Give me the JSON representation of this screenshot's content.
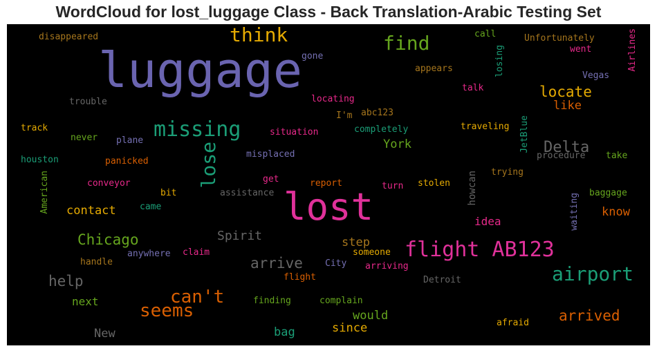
{
  "chart_data": {
    "type": "wordcloud",
    "title": "WordCloud for lost_luggage Class - Back Translation-Arabic Testing Set",
    "background": "#000000",
    "words": [
      {
        "text": "luggage",
        "weight": 1.0,
        "color": "#6a64b0"
      },
      {
        "text": "lost",
        "weight": 0.85,
        "color": "#e0319a"
      },
      {
        "text": "flight AB123",
        "weight": 0.48,
        "color": "#e0319a"
      },
      {
        "text": "missing",
        "weight": 0.48,
        "color": "#1b9e77"
      },
      {
        "text": "think",
        "weight": 0.4,
        "color": "#e6ab02"
      },
      {
        "text": "find",
        "weight": 0.4,
        "color": "#66a61e"
      },
      {
        "text": "lose",
        "weight": 0.4,
        "color": "#1b9e77"
      },
      {
        "text": "airport",
        "weight": 0.4,
        "color": "#1b9e77"
      },
      {
        "text": "seems",
        "weight": 0.37,
        "color": "#d95f02"
      },
      {
        "text": "can't",
        "weight": 0.37,
        "color": "#d95f02"
      },
      {
        "text": "Delta",
        "weight": 0.33,
        "color": "#666666"
      },
      {
        "text": "arrive",
        "weight": 0.33,
        "color": "#666666"
      },
      {
        "text": "Chicago",
        "weight": 0.33,
        "color": "#66a61e"
      },
      {
        "text": "arrived",
        "weight": 0.33,
        "color": "#d95f02"
      },
      {
        "text": "locate",
        "weight": 0.33,
        "color": "#e6ab02"
      },
      {
        "text": "help",
        "weight": 0.33,
        "color": "#666666"
      },
      {
        "text": "Spirit",
        "weight": 0.28,
        "color": "#666666"
      },
      {
        "text": "contact",
        "weight": 0.25,
        "color": "#e6ab02"
      },
      {
        "text": "know",
        "weight": 0.25,
        "color": "#d95f02"
      },
      {
        "text": "York",
        "weight": 0.25,
        "color": "#66a61e"
      },
      {
        "text": "like",
        "weight": 0.25,
        "color": "#d95f02"
      },
      {
        "text": "step",
        "weight": 0.25,
        "color": "#a6761d"
      },
      {
        "text": "would",
        "weight": 0.25,
        "color": "#66a61e"
      },
      {
        "text": "since",
        "weight": 0.25,
        "color": "#e6ab02"
      },
      {
        "text": "bag",
        "weight": 0.25,
        "color": "#1b9e77"
      },
      {
        "text": "New",
        "weight": 0.25,
        "color": "#666666"
      },
      {
        "text": "next",
        "weight": 0.25,
        "color": "#66a61e"
      },
      {
        "text": "idea",
        "weight": 0.25,
        "color": "#e7298a"
      },
      {
        "text": "howcan",
        "weight": 0.2,
        "color": "#666666"
      },
      {
        "text": "disappeared",
        "weight": 0.2,
        "color": "#a6761d"
      },
      {
        "text": "gone",
        "weight": 0.2,
        "color": "#7570b3"
      },
      {
        "text": "call",
        "weight": 0.2,
        "color": "#66a61e"
      },
      {
        "text": "Unfortunately",
        "weight": 0.2,
        "color": "#a6761d"
      },
      {
        "text": "Airlines",
        "weight": 0.2,
        "color": "#e7298a"
      },
      {
        "text": "went",
        "weight": 0.2,
        "color": "#e7298a"
      },
      {
        "text": "losing",
        "weight": 0.2,
        "color": "#1b9e77"
      },
      {
        "text": "appears",
        "weight": 0.2,
        "color": "#a6761d"
      },
      {
        "text": "Vegas",
        "weight": 0.2,
        "color": "#7570b3"
      },
      {
        "text": "talk",
        "weight": 0.2,
        "color": "#e7298a"
      },
      {
        "text": "locating",
        "weight": 0.2,
        "color": "#e7298a"
      },
      {
        "text": "abc123",
        "weight": 0.2,
        "color": "#a6761d"
      },
      {
        "text": "I'm",
        "weight": 0.2,
        "color": "#a6761d"
      },
      {
        "text": "trouble",
        "weight": 0.2,
        "color": "#666666"
      },
      {
        "text": "track",
        "weight": 0.2,
        "color": "#e6ab02"
      },
      {
        "text": "situation",
        "weight": 0.2,
        "color": "#e7298a"
      },
      {
        "text": "completely",
        "weight": 0.2,
        "color": "#1b9e77"
      },
      {
        "text": "traveling",
        "weight": 0.2,
        "color": "#e6ab02"
      },
      {
        "text": "JetBlue",
        "weight": 0.2,
        "color": "#1b9e77"
      },
      {
        "text": "never",
        "weight": 0.2,
        "color": "#66a61e"
      },
      {
        "text": "plane",
        "weight": 0.2,
        "color": "#7570b3"
      },
      {
        "text": "misplaced",
        "weight": 0.2,
        "color": "#7570b3"
      },
      {
        "text": "procedure",
        "weight": 0.2,
        "color": "#666666"
      },
      {
        "text": "take",
        "weight": 0.2,
        "color": "#66a61e"
      },
      {
        "text": "houston",
        "weight": 0.2,
        "color": "#1b9e77"
      },
      {
        "text": "panicked",
        "weight": 0.2,
        "color": "#d95f02"
      },
      {
        "text": "American",
        "weight": 0.2,
        "color": "#66a61e"
      },
      {
        "text": "trying",
        "weight": 0.2,
        "color": "#a6761d"
      },
      {
        "text": "get",
        "weight": 0.2,
        "color": "#e7298a"
      },
      {
        "text": "report",
        "weight": 0.2,
        "color": "#d95f02"
      },
      {
        "text": "turn",
        "weight": 0.2,
        "color": "#e7298a"
      },
      {
        "text": "stolen",
        "weight": 0.2,
        "color": "#e6ab02"
      },
      {
        "text": "conveyor",
        "weight": 0.2,
        "color": "#e7298a"
      },
      {
        "text": "bit",
        "weight": 0.2,
        "color": "#e6ab02"
      },
      {
        "text": "assistance",
        "weight": 0.2,
        "color": "#666666"
      },
      {
        "text": "baggage",
        "weight": 0.2,
        "color": "#66a61e"
      },
      {
        "text": "waiting",
        "weight": 0.2,
        "color": "#7570b3"
      },
      {
        "text": "came",
        "weight": 0.2,
        "color": "#1b9e77"
      },
      {
        "text": "anywhere",
        "weight": 0.2,
        "color": "#7570b3"
      },
      {
        "text": "claim",
        "weight": 0.2,
        "color": "#e7298a"
      },
      {
        "text": "someone",
        "weight": 0.2,
        "color": "#e6ab02"
      },
      {
        "text": "City",
        "weight": 0.2,
        "color": "#7570b3"
      },
      {
        "text": "handle",
        "weight": 0.2,
        "color": "#a6761d"
      },
      {
        "text": "arriving",
        "weight": 0.2,
        "color": "#e7298a"
      },
      {
        "text": "flight",
        "weight": 0.2,
        "color": "#d95f02"
      },
      {
        "text": "Detroit",
        "weight": 0.2,
        "color": "#666666"
      },
      {
        "text": "finding",
        "weight": 0.2,
        "color": "#66a61e"
      },
      {
        "text": "complain",
        "weight": 0.2,
        "color": "#66a61e"
      },
      {
        "text": "afraid",
        "weight": 0.2,
        "color": "#e6ab02"
      }
    ]
  }
}
